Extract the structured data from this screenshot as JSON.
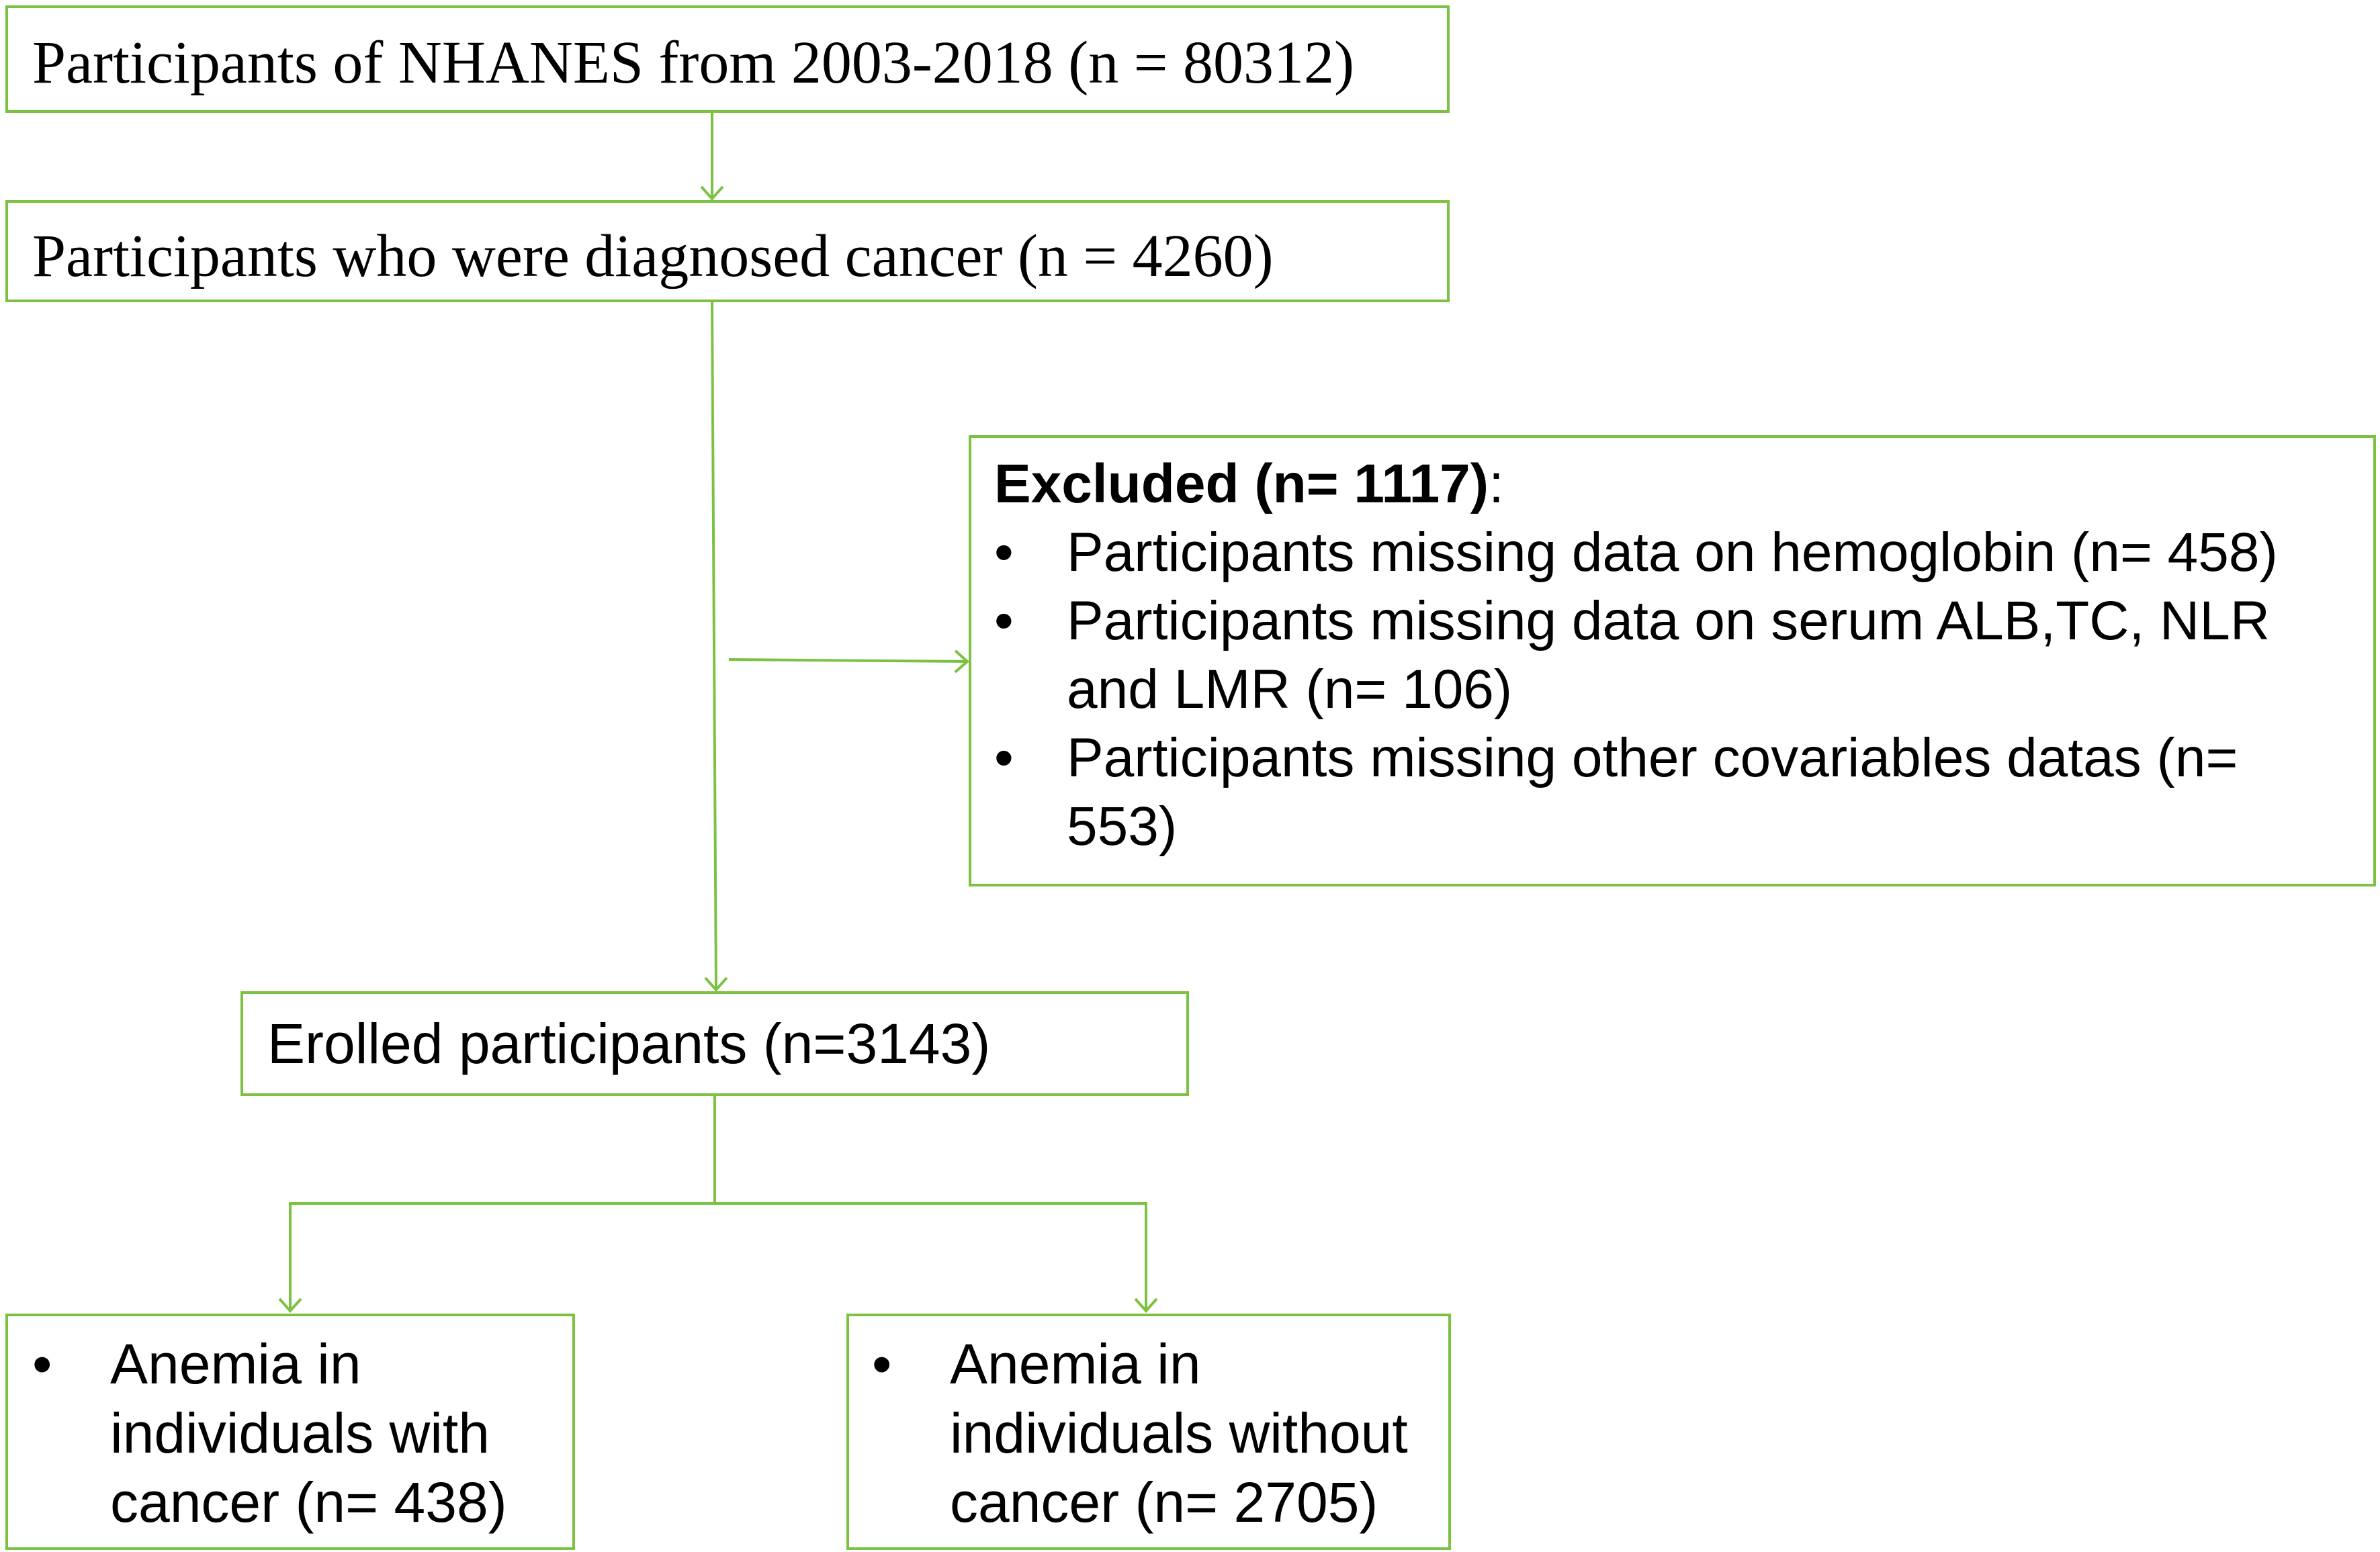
{
  "boxes": {
    "nhanes": {
      "text": "Participants of NHANES from 2003-2018 (n = 80312)"
    },
    "cancer": {
      "text": "Participants who were diagnosed cancer (n = 4260)"
    },
    "excluded": {
      "title": "Excluded (n= 1117)",
      "title_suffix": ":",
      "items": [
        {
          "line1": "Participants missing data on hemoglobin (n= 458)",
          "line2": ""
        },
        {
          "line1": "Participants missing data on serum ALB,TC, NLR",
          "line2": "and LMR (n= 106)"
        },
        {
          "line1": "Participants missing other covariables datas (n=",
          "line2": "553)"
        }
      ]
    },
    "enrolled": {
      "text": "Erolled participants (n=3143)"
    },
    "with_cancer": {
      "lines": [
        "Anemia in",
        "individuals with",
        "cancer (n= 438)"
      ]
    },
    "without_cancer": {
      "lines": [
        "Anemia in",
        "individuals without",
        "cancer (n= 2705)"
      ]
    }
  },
  "bullet_symbol": "•",
  "colors": {
    "line": "#7cc242",
    "text": "#000000",
    "background": "#ffffff"
  }
}
